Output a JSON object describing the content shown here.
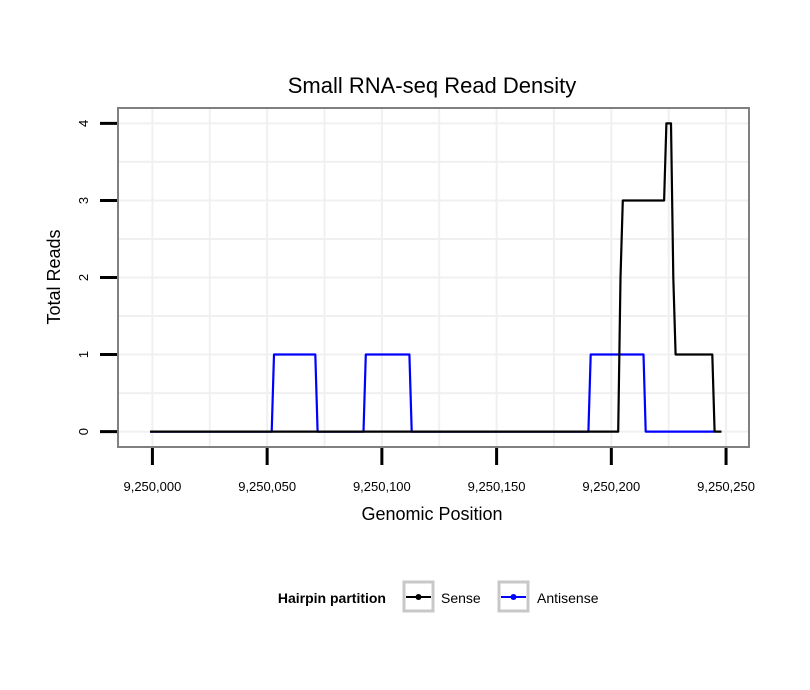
{
  "chart_data": {
    "type": "line",
    "title": "Small RNA-seq Read Density",
    "xlabel": "Genomic Position",
    "ylabel": "Total Reads",
    "xlim": [
      9249985,
      9250260
    ],
    "ylim": [
      -0.2,
      4.2
    ],
    "x_ticks": [
      9250000,
      9250050,
      9250100,
      9250150,
      9250200,
      9250250
    ],
    "x_tick_labels": [
      "9,250,000",
      "9,250,050",
      "9,250,100",
      "9,250,150",
      "9,250,200",
      "9,250,250"
    ],
    "y_ticks": [
      0,
      1,
      2,
      3,
      4
    ],
    "y_tick_labels": [
      "0",
      "1",
      "2",
      "3",
      "4"
    ],
    "grid": true,
    "legend": {
      "title": "Hairpin partition",
      "position": "bottom",
      "entries": [
        "Sense",
        "Antisense"
      ]
    },
    "series": [
      {
        "name": "Sense",
        "color": "#000000",
        "points": [
          [
            9249999,
            0
          ],
          [
            9250203,
            0
          ],
          [
            9250204,
            2
          ],
          [
            9250205,
            3
          ],
          [
            9250223,
            3
          ],
          [
            9250224,
            4
          ],
          [
            9250226,
            4
          ],
          [
            9250227,
            2
          ],
          [
            9250228,
            1
          ],
          [
            9250244,
            1
          ],
          [
            9250245,
            0
          ],
          [
            9250248,
            0
          ]
        ]
      },
      {
        "name": "Antisense",
        "color": "#0000ff",
        "points": [
          [
            9249999,
            0
          ],
          [
            9250052,
            0
          ],
          [
            9250053,
            1
          ],
          [
            9250071,
            1
          ],
          [
            9250072,
            0
          ],
          [
            9250092,
            0
          ],
          [
            9250093,
            1
          ],
          [
            9250112,
            1
          ],
          [
            9250113,
            0
          ],
          [
            9250190,
            0
          ],
          [
            9250191,
            1
          ],
          [
            9250214,
            1
          ],
          [
            9250215,
            0
          ],
          [
            9250245,
            0
          ]
        ]
      }
    ]
  }
}
